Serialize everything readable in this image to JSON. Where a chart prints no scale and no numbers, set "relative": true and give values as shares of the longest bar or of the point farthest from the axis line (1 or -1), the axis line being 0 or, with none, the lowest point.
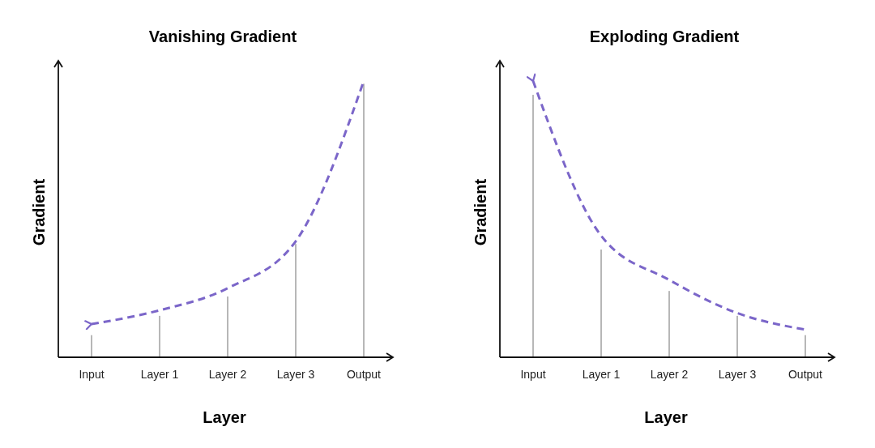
{
  "chart_data": [
    {
      "type": "bar",
      "title": "Vanishing Gradient",
      "xlabel": "Layer",
      "ylabel": "Gradient",
      "relative": true,
      "line_style": "dashed",
      "categories": [
        "Input",
        "Layer 1",
        "Layer 2",
        "Layer 3",
        "Output"
      ],
      "series": [
        {
          "color": "#a0a0a0",
          "values": [
            0.08,
            0.15,
            0.22,
            0.41,
            0.99
          ]
        },
        {
          "type": "line",
          "color": "#7b66c9",
          "values": [
            0.12,
            0.17,
            0.25,
            0.42,
            1
          ]
        }
      ]
    },
    {
      "type": "bar",
      "title": "Exploding Gradient",
      "xlabel": "Layer",
      "ylabel": "Gradient",
      "relative": true,
      "line_style": "dashed",
      "categories": [
        "Input",
        "Layer 1",
        "Layer 2",
        "Layer 3",
        "Output"
      ],
      "series": [
        {
          "color": "#a0a0a0",
          "values": [
            0.95,
            0.39,
            0.24,
            0.15,
            0.08
          ]
        },
        {
          "type": "line",
          "color": "#7b66c9",
          "values": [
            1,
            0.44,
            0.28,
            0.16,
            0.1
          ]
        }
      ]
    }
  ]
}
